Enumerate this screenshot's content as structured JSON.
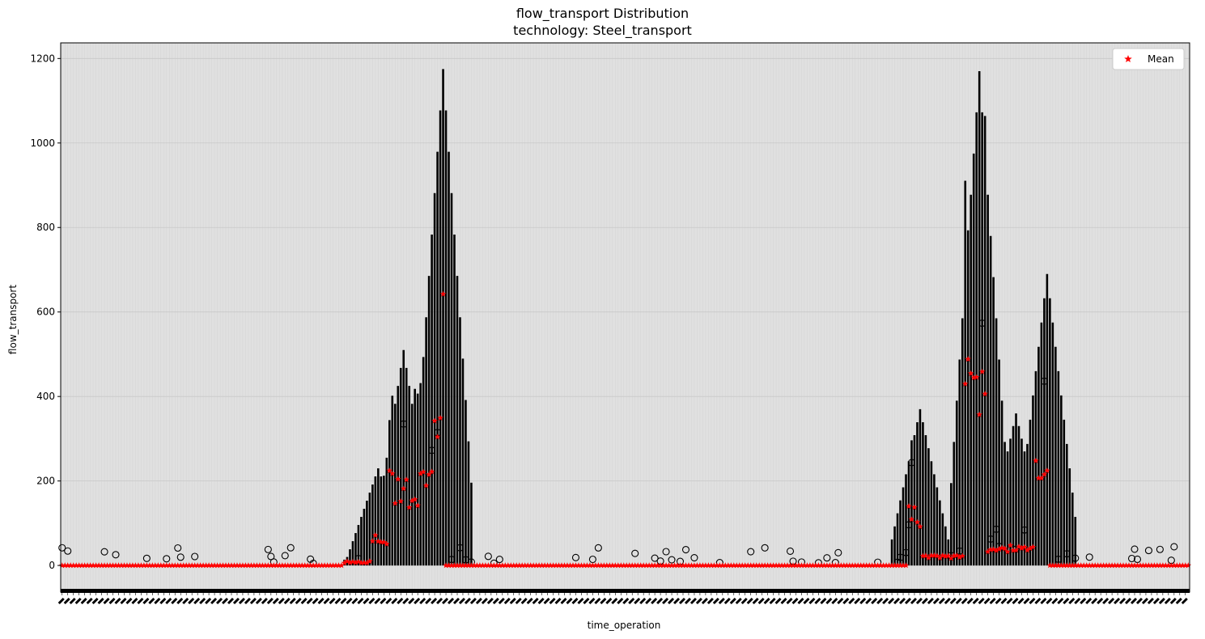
{
  "chart_data": {
    "type": "box",
    "title": "flow_transport Distribution",
    "subtitle": "technology: Steel_transport",
    "xlabel": "time_operation",
    "ylabel": "flow_transport",
    "ylim": [
      -63,
      1237
    ],
    "yticks": [
      0,
      200,
      400,
      600,
      800,
      1000,
      1200
    ],
    "grid": true,
    "legend": {
      "position": "top-right",
      "entries": [
        {
          "marker": "red-star",
          "label": "Mean"
        }
      ]
    },
    "mean_color": "#ff0000",
    "plot_background": "#e0e0e0",
    "num_time_steps": 400,
    "x_tick_labels_note": "dense, rotated, illegible",
    "approx_mean_profile": [
      {
        "range": [
          0,
          100
        ],
        "mean": 0
      },
      {
        "range": [
          100,
          110
        ],
        "mean": 8
      },
      {
        "range": [
          110,
          116
        ],
        "mean": 60
      },
      {
        "range": [
          116,
          130
        ],
        "mean": 180
      },
      {
        "range": [
          130,
          135
        ],
        "mean": 280
      },
      {
        "range": [
          135,
          136
        ],
        "mean": 565
      },
      {
        "range": [
          136,
          300
        ],
        "mean": 0
      },
      {
        "range": [
          300,
          305
        ],
        "mean": 120
      },
      {
        "range": [
          305,
          320
        ],
        "mean": 20
      },
      {
        "range": [
          320,
          328
        ],
        "mean": 430
      },
      {
        "range": [
          328,
          345
        ],
        "mean": 40
      },
      {
        "range": [
          345,
          350
        ],
        "mean": 200
      },
      {
        "range": [
          350,
          400
        ],
        "mean": 0
      }
    ],
    "approx_max_whisker_peaks": [
      {
        "index": 112,
        "value": 230
      },
      {
        "index": 121,
        "value": 510
      },
      {
        "index": 132,
        "value": 740
      },
      {
        "index": 135,
        "value": 1175
      },
      {
        "index": 304,
        "value": 370
      },
      {
        "index": 325,
        "value": 1170
      },
      {
        "index": 338,
        "value": 360
      },
      {
        "index": 349,
        "value": 690
      }
    ]
  }
}
